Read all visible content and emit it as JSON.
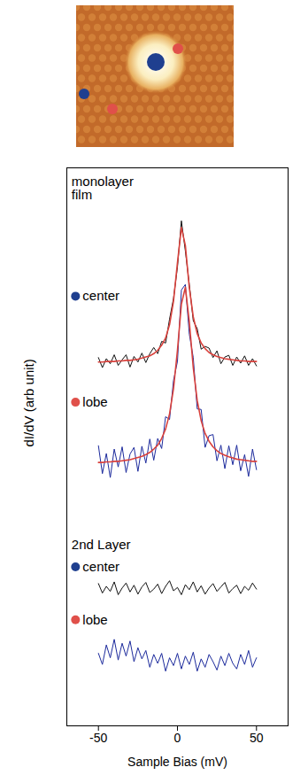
{
  "chart_data": {
    "type": "line",
    "x_label": "Sample Bias (mV)",
    "y_label": "dI/dV (arb unit)",
    "x": [
      -50,
      -47.5,
      -45,
      -42.5,
      -40,
      -37.5,
      -35,
      -32.5,
      -30,
      -27.5,
      -25,
      -22.5,
      -20,
      -17.5,
      -15,
      -12.5,
      -10,
      -7.5,
      -5,
      -2.5,
      0,
      2.5,
      5,
      7.5,
      10,
      12.5,
      15,
      17.5,
      20,
      22.5,
      25,
      27.5,
      30,
      32.5,
      35,
      37.5,
      40,
      42.5,
      45,
      47.5,
      50
    ],
    "xlim": [
      -70,
      70
    ],
    "xticks": [
      -50,
      0,
      50
    ],
    "ylim": [
      0,
      10
    ],
    "yticks": [],
    "tick_labels": "x",
    "grid": false,
    "series": [
      {
        "color": "#111111",
        "line_style": "solid",
        "values": [
          6.6,
          6.42,
          6.58,
          6.49,
          6.65,
          6.46,
          6.56,
          6.65,
          6.43,
          6.62,
          6.52,
          6.68,
          6.51,
          6.67,
          6.78,
          6.67,
          6.89,
          6.86,
          7.29,
          7.66,
          8.22,
          9.05,
          8.51,
          7.91,
          7.26,
          7.12,
          6.75,
          6.8,
          6.77,
          6.6,
          6.72,
          6.49,
          6.61,
          6.64,
          6.46,
          6.61,
          6.5,
          6.63,
          6.46,
          6.58,
          6.45
        ]
      },
      {
        "color": "#d9413c",
        "line_style": "solid",
        "values": [
          6.52,
          6.52,
          6.53,
          6.53,
          6.53,
          6.54,
          6.54,
          6.55,
          6.55,
          6.56,
          6.57,
          6.59,
          6.61,
          6.63,
          6.67,
          6.73,
          6.82,
          6.95,
          7.19,
          7.61,
          8.3,
          8.93,
          8.61,
          7.85,
          7.33,
          7.03,
          6.86,
          6.76,
          6.69,
          6.65,
          6.62,
          6.6,
          6.58,
          6.57,
          6.56,
          6.55,
          6.54,
          6.54,
          6.53,
          6.53,
          6.53
        ]
      },
      {
        "color": "#1c2a9c",
        "line_style": "solid",
        "values": [
          5.02,
          4.52,
          4.88,
          4.45,
          4.96,
          4.64,
          5.0,
          4.54,
          4.87,
          4.99,
          4.56,
          5.01,
          4.71,
          5.14,
          4.76,
          5.15,
          4.97,
          5.54,
          5.49,
          6.19,
          6.53,
          7.81,
          7.91,
          7.02,
          6.6,
          5.68,
          5.67,
          4.99,
          5.2,
          5.22,
          4.75,
          5.03,
          4.61,
          5.02,
          4.68,
          5.03,
          4.57,
          4.86,
          4.47,
          4.96,
          4.59
        ]
      },
      {
        "color": "#d9413c",
        "line_style": "solid",
        "values": [
          4.72,
          4.72,
          4.73,
          4.73,
          4.74,
          4.74,
          4.75,
          4.76,
          4.77,
          4.79,
          4.81,
          4.83,
          4.86,
          4.9,
          4.96,
          5.03,
          5.15,
          5.32,
          5.59,
          6.04,
          6.73,
          7.56,
          7.86,
          7.24,
          6.42,
          5.83,
          5.47,
          5.24,
          5.1,
          5.0,
          4.93,
          4.88,
          4.85,
          4.82,
          4.8,
          4.78,
          4.77,
          4.76,
          4.75,
          4.74,
          4.74
        ]
      },
      {
        "color": "#111111",
        "line_style": "solid",
        "values": [
          2.55,
          2.38,
          2.5,
          2.41,
          2.58,
          2.35,
          2.47,
          2.56,
          2.4,
          2.52,
          2.36,
          2.49,
          2.57,
          2.39,
          2.45,
          2.54,
          2.37,
          2.5,
          2.6,
          2.42,
          2.48,
          2.35,
          2.53,
          2.44,
          2.58,
          2.4,
          2.51,
          2.36,
          2.47,
          2.55,
          2.41,
          2.49,
          2.57,
          2.38,
          2.46,
          2.52,
          2.37,
          2.5,
          2.43,
          2.56,
          2.45
        ]
      },
      {
        "color": "#1c2a9c",
        "line_style": "solid",
        "values": [
          1.3,
          1.1,
          1.45,
          1.22,
          1.55,
          1.18,
          1.48,
          1.25,
          1.52,
          1.15,
          1.4,
          1.2,
          1.35,
          1.05,
          1.28,
          1.12,
          1.3,
          0.98,
          1.22,
          1.08,
          1.3,
          1.02,
          1.25,
          1.1,
          1.32,
          0.98,
          1.2,
          1.05,
          1.28,
          1.15,
          1.0,
          1.25,
          1.08,
          1.3,
          1.12,
          1.02,
          1.28,
          1.1,
          1.35,
          1.05,
          1.22
        ]
      }
    ],
    "annotations": [
      {
        "text": "monolayer film"
      },
      {
        "text": "center",
        "marker": "circle",
        "color": "#1f3f8f"
      },
      {
        "text": "lobe",
        "marker": "circle",
        "color": "#e0504a"
      },
      {
        "text": "2nd Layer"
      },
      {
        "text": "center",
        "marker": "circle",
        "color": "#1f3f8f"
      },
      {
        "text": "lobe",
        "marker": "circle",
        "color": "#e0504a"
      }
    ]
  }
}
